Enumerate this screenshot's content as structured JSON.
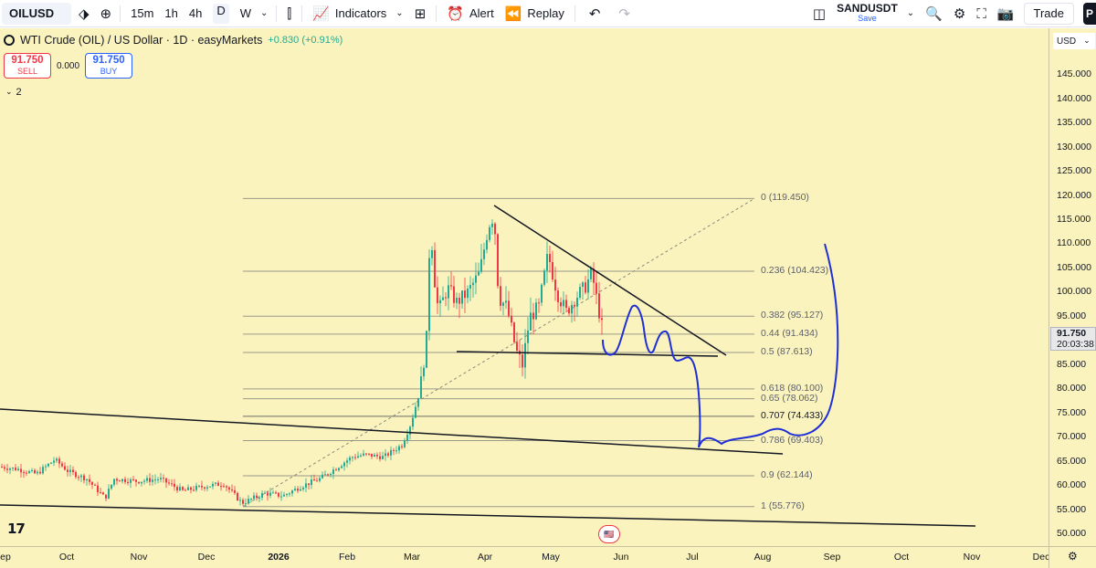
{
  "toolbar": {
    "symbol": "OILUSD",
    "timeframes": [
      "15m",
      "1h",
      "4h",
      "D",
      "W"
    ],
    "active_timeframe": "D",
    "indicators_label": "Indicators",
    "alert_label": "Alert",
    "replay_label": "Replay",
    "layout_name": "SANDUSDT",
    "save_label": "Save",
    "trade_label": "Trade",
    "avatar_letter": "P"
  },
  "legend": {
    "title": "WTI Crude (OIL) / US Dollar · 1D · easyMarkets",
    "change": "+0.830 (+0.91%)",
    "sell_price": "91.750",
    "sell_label": "SELL",
    "spread": "0.000",
    "buy_price": "91.750",
    "buy_label": "BUY",
    "collapse_count": "2"
  },
  "currency": "USD",
  "current_price": {
    "price": "91.750",
    "countdown": "20:03:38"
  },
  "price_axis": [
    "145.000",
    "140.000",
    "135.000",
    "130.000",
    "125.000",
    "120.000",
    "115.000",
    "110.000",
    "105.000",
    "100.000",
    "95.000",
    "85.000",
    "80.000",
    "75.000",
    "70.000",
    "65.000",
    "60.000",
    "55.000",
    "50.000"
  ],
  "time_axis": [
    "ep",
    "Oct",
    "Nov",
    "Dec",
    "2026",
    "Feb",
    "Mar",
    "Apr",
    "May",
    "Jun",
    "Jul",
    "Aug",
    "Sep",
    "Oct",
    "Nov",
    "Dec"
  ],
  "fib_levels": [
    {
      "label": "0 (119.450)",
      "value": 119.45
    },
    {
      "label": "0.236 (104.423)",
      "value": 104.423
    },
    {
      "label": "0.382 (95.127)",
      "value": 95.127
    },
    {
      "label": "0.44 (91.434)",
      "value": 91.434
    },
    {
      "label": "0.5 (87.613)",
      "value": 87.613
    },
    {
      "label": "0.618 (80.100)",
      "value": 80.1
    },
    {
      "label": "0.65 (78.062)",
      "value": 78.062
    },
    {
      "label": "0.707 (74.433)",
      "value": 74.433
    },
    {
      "label": "0.786 (69.403)",
      "value": 69.403
    },
    {
      "label": "0.9 (62.144)",
      "value": 62.144
    },
    {
      "label": "1 (55.776)",
      "value": 55.776
    }
  ],
  "colors": {
    "background": "#fbf3bd",
    "up": "#22ab94",
    "down": "#f23645",
    "projection": "#1f2fd6",
    "trendline": "#131722"
  }
}
